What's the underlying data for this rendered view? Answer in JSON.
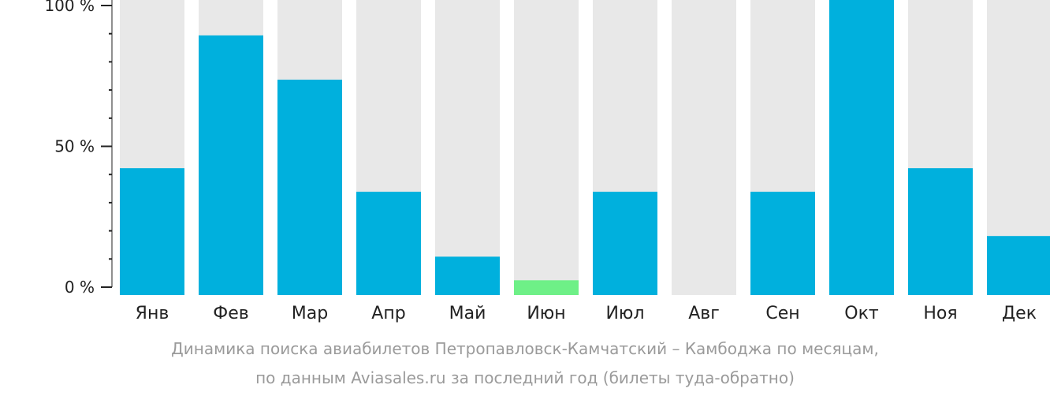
{
  "chart_data": {
    "type": "bar",
    "categories": [
      "Янв",
      "Фев",
      "Мар",
      "Апр",
      "Май",
      "Июн",
      "Июл",
      "Авг",
      "Сен",
      "Окт",
      "Ноя",
      "Дек"
    ],
    "values": [
      43,
      88,
      73,
      35,
      13,
      5,
      35,
      0,
      35,
      100,
      43,
      20
    ],
    "ylim": [
      0,
      100
    ],
    "y_ticks": [
      "0 %",
      "50 %",
      "100 %"
    ],
    "highlight_index": 5,
    "colors": {
      "bar": "#00b0dd",
      "highlight": "#6ef087",
      "track": "#e8e8e8",
      "axis": "#222222"
    },
    "caption_line1": "Динамика поиска авиабилетов Петропавловск-Камчатский – Камбоджа по месяцам,",
    "caption_line2": "по данным Aviasales.ru за последний год (билеты туда-обратно)"
  }
}
